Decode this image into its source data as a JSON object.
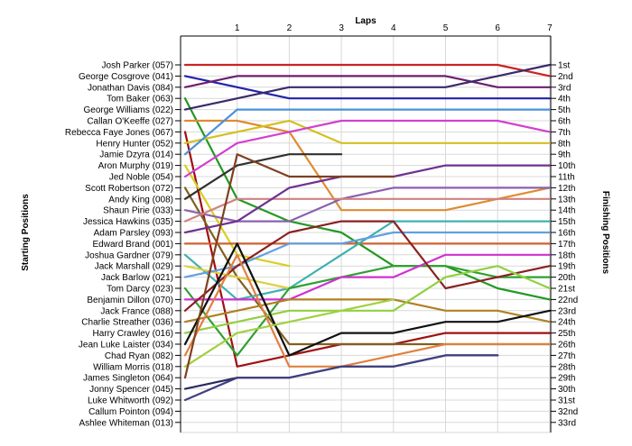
{
  "chart_data": {
    "type": "line",
    "title": "",
    "xlabel": "Laps",
    "ylabel_left": "Starting Positions",
    "ylabel_right": "Finishing Positions",
    "x": [
      0,
      1,
      2,
      3,
      4,
      5,
      6,
      7
    ],
    "x_tick_labels": [
      "1",
      "2",
      "3",
      "4",
      "5",
      "6",
      "7"
    ],
    "position_labels": [
      "1st",
      "2nd",
      "3rd",
      "4th",
      "5th",
      "6th",
      "7th",
      "8th",
      "9th",
      "10th",
      "11th",
      "12th",
      "13th",
      "14th",
      "15th",
      "16th",
      "17th",
      "18th",
      "19th",
      "20th",
      "21st",
      "22nd",
      "23rd",
      "24th",
      "25th",
      "26th",
      "27th",
      "28th",
      "29th",
      "30th",
      "31st",
      "32nd",
      "33rd"
    ],
    "grid": true,
    "series": [
      {
        "name": "Josh Parker (057)",
        "color": "#cc2222",
        "values": [
          1,
          1,
          1,
          1,
          1,
          1,
          1,
          2
        ]
      },
      {
        "name": "George Cosgrove (041)",
        "color": "#2222aa",
        "values": [
          2,
          3,
          4,
          4,
          4,
          4,
          4,
          4
        ]
      },
      {
        "name": "Jonathan Davis (084)",
        "color": "#6a2070",
        "values": [
          3,
          2,
          2,
          2,
          2,
          2,
          3,
          3
        ]
      },
      {
        "name": "Tom Baker (063)",
        "color": "#229922",
        "values": [
          4,
          13,
          15,
          16,
          19,
          19,
          21,
          22
        ]
      },
      {
        "name": "George Williams (022)",
        "color": "#3a2a6a",
        "values": [
          5,
          4,
          3,
          3,
          3,
          3,
          2,
          1
        ]
      },
      {
        "name": "Callan O'Keeffe (027)",
        "color": "#e08a30",
        "values": [
          6,
          6,
          7,
          14,
          14,
          14,
          13,
          12
        ]
      },
      {
        "name": "Rebecca Faye Jones (067)",
        "color": "#a01010",
        "values": [
          7,
          28,
          27,
          26,
          26,
          25,
          25,
          25
        ]
      },
      {
        "name": "Henry Hunter (052)",
        "color": "#d4c020",
        "values": [
          8,
          7,
          6,
          8,
          8,
          8,
          8,
          8
        ]
      },
      {
        "name": "Jamie Dzyra (014)",
        "color": "#4a90d8",
        "values": [
          9,
          5,
          5,
          5,
          5,
          5,
          5,
          5
        ]
      },
      {
        "name": "Aron Murphy (019)",
        "color": "#d8d020",
        "values": [
          10,
          18,
          19,
          null,
          null,
          null,
          null,
          null
        ]
      },
      {
        "name": "Jed Noble (054)",
        "color": "#d040d0",
        "values": [
          11,
          8,
          7,
          6,
          6,
          6,
          6,
          7
        ]
      },
      {
        "name": "Scott Robertson (072)",
        "color": "#806020",
        "values": [
          12,
          20,
          26,
          26,
          26,
          26,
          26,
          26
        ]
      },
      {
        "name": "Andy King (008)",
        "color": "#303030",
        "values": [
          13,
          10,
          9,
          9,
          null,
          null,
          null,
          null
        ]
      },
      {
        "name": "Shaun Pirie (033)",
        "color": "#8a60b0",
        "values": [
          14,
          15,
          15,
          13,
          12,
          12,
          12,
          12
        ]
      },
      {
        "name": "Jessica Hawkins (035)",
        "color": "#d08080",
        "values": [
          15,
          13,
          13,
          13,
          13,
          13,
          13,
          13
        ]
      },
      {
        "name": "Adam Parsley (093)",
        "color": "#703090",
        "values": [
          16,
          15,
          12,
          11,
          11,
          10,
          10,
          10
        ]
      },
      {
        "name": "Edward Brand (001)",
        "color": "#d06030",
        "values": [
          17,
          17,
          17,
          17,
          17,
          17,
          17,
          17
        ]
      },
      {
        "name": "Joshua Gardner (079)",
        "color": "#40b0b0",
        "values": [
          18,
          22,
          21,
          18,
          15,
          15,
          15,
          15
        ]
      },
      {
        "name": "Jack Marshall (029)",
        "color": "#e0d040",
        "values": [
          19,
          20,
          21,
          null,
          null,
          null,
          null,
          null
        ]
      },
      {
        "name": "Jack Barlow (021)",
        "color": "#60a0e0",
        "values": [
          20,
          19,
          17,
          17,
          16,
          16,
          16,
          16
        ]
      },
      {
        "name": "Tom Darcy (023)",
        "color": "#30a030",
        "values": [
          21,
          27,
          21,
          20,
          19,
          19,
          20,
          20
        ]
      },
      {
        "name": "Benjamin Dillon (070)",
        "color": "#d030d0",
        "values": [
          22,
          22,
          22,
          20,
          20,
          18,
          18,
          18
        ]
      },
      {
        "name": "Jack France (088)",
        "color": "#8a2020",
        "values": [
          23,
          19,
          16,
          15,
          15,
          21,
          20,
          19
        ]
      },
      {
        "name": "Charlie Streather (036)",
        "color": "#b08020",
        "values": [
          24,
          23,
          22,
          22,
          22,
          23,
          23,
          24
        ]
      },
      {
        "name": "Harry Crawley (016)",
        "color": "#90d040",
        "values": [
          25,
          24,
          23,
          23,
          23,
          20,
          19,
          21
        ]
      },
      {
        "name": "Jean Luke Laister (034)",
        "color": "#101010",
        "values": [
          26,
          17,
          27,
          25,
          25,
          24,
          24,
          23
        ]
      },
      {
        "name": "Chad Ryan (082)",
        "color": "#e08040",
        "values": [
          27,
          18,
          28,
          28,
          27,
          26,
          26,
          26
        ]
      },
      {
        "name": "William Morris (018)",
        "color": "#a0d040",
        "values": [
          28,
          25,
          24,
          23,
          22,
          null,
          null,
          null
        ]
      },
      {
        "name": "James Singleton (064)",
        "color": "#804020",
        "values": [
          29,
          9,
          11,
          11,
          11,
          null,
          null,
          null
        ]
      },
      {
        "name": "Jonny Spencer (045)",
        "color": "#2a2a60",
        "values": [
          30,
          29,
          29,
          28,
          28,
          27,
          27,
          null
        ]
      },
      {
        "name": "Luke Whitworth (092)",
        "color": "#404080",
        "values": [
          31,
          29,
          29,
          28,
          28,
          27,
          27,
          null
        ]
      },
      {
        "name": "Callum Pointon (094)",
        "color": "#606060",
        "values": [
          32,
          null,
          null,
          null,
          null,
          null,
          null,
          null
        ]
      },
      {
        "name": "Ashlee Whiteman (013)",
        "color": "#808080",
        "values": [
          33,
          null,
          null,
          null,
          null,
          null,
          null,
          null
        ]
      }
    ],
    "final_order_labels": [
      "1st",
      "2nd",
      "3rd",
      "4th",
      "5th",
      "6th",
      "7th",
      "8th",
      "9th",
      "10th",
      "11th",
      "12th",
      "13th",
      "14th",
      "15th",
      "16th",
      "17th",
      "18th",
      "19th",
      "20th",
      "21st",
      "22nd",
      "23rd",
      "24th",
      "25th",
      "26th",
      "27th",
      "28th",
      "29th",
      "30th",
      "31st",
      "32nd",
      "33rd"
    ]
  }
}
